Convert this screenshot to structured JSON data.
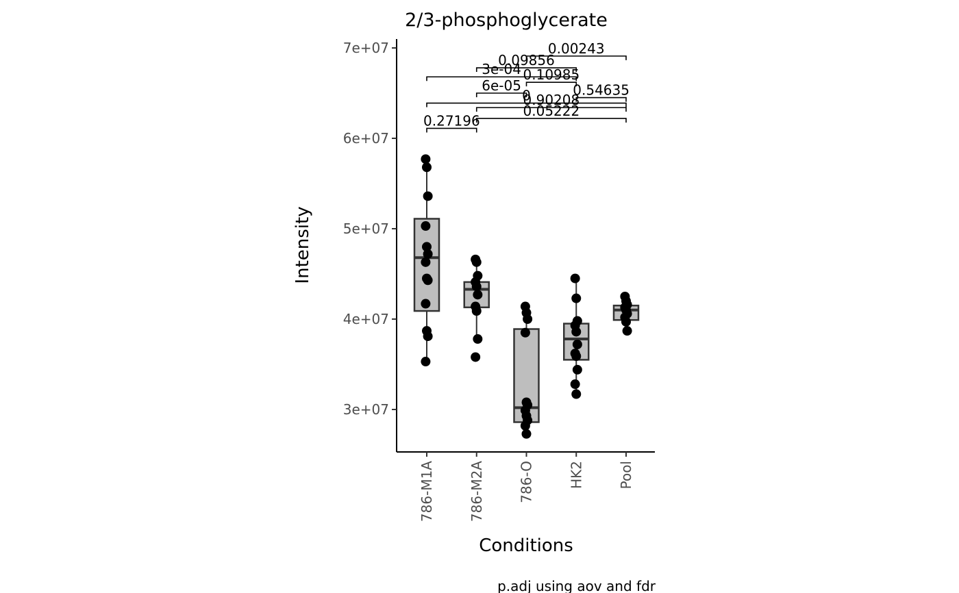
{
  "chart_data": {
    "type": "box",
    "title": "2/3-phosphoglycerate",
    "xlabel": "Conditions",
    "ylabel": "Intensity",
    "caption": "p.adj using  aov and fdr",
    "categories": [
      "786-M1A",
      "786-M2A",
      "786-O",
      "HK2",
      "Pool"
    ],
    "ylim": [
      25200000,
      71000000
    ],
    "yticks": [
      30000000,
      40000000,
      50000000,
      60000000,
      70000000
    ],
    "ytick_labels": [
      "3e+07",
      "4e+07",
      "5e+07",
      "6e+07",
      "7e+07"
    ],
    "boxes": [
      {
        "category": "786-M1A",
        "q1": 40900000,
        "median": 46800000,
        "q3": 51100000,
        "whisker_low": 35300000,
        "whisker_high": 57700000
      },
      {
        "category": "786-M2A",
        "q1": 41300000,
        "median": 43300000,
        "q3": 44100000,
        "whisker_low": 37800000,
        "whisker_high": 46600000
      },
      {
        "category": "786-O",
        "q1": 28600000,
        "median": 30200000,
        "q3": 38900000,
        "whisker_low": 27300000,
        "whisker_high": 41400000
      },
      {
        "category": "HK2",
        "q1": 35500000,
        "median": 37800000,
        "q3": 39500000,
        "whisker_low": 31700000,
        "whisker_high": 44500000
      },
      {
        "category": "Pool",
        "q1": 39900000,
        "median": 41000000,
        "q3": 41500000,
        "whisker_low": 38700000,
        "whisker_high": 42500000
      }
    ],
    "points": [
      {
        "category": "786-M1A",
        "values": [
          57700000,
          56800000,
          53600000,
          50300000,
          48000000,
          47200000,
          46300000,
          44500000,
          44300000,
          41700000,
          38700000,
          38100000,
          35300000
        ]
      },
      {
        "category": "786-M2A",
        "values": [
          46600000,
          46300000,
          44800000,
          44100000,
          43600000,
          42700000,
          41400000,
          40900000,
          37800000,
          35800000
        ]
      },
      {
        "category": "786-O",
        "values": [
          41400000,
          40700000,
          40000000,
          38500000,
          30800000,
          30500000,
          29900000,
          29300000,
          28800000,
          28200000,
          27300000
        ]
      },
      {
        "category": "HK2",
        "values": [
          44500000,
          42300000,
          39800000,
          39300000,
          38600000,
          37200000,
          36200000,
          35900000,
          34400000,
          32800000,
          31700000
        ]
      },
      {
        "category": "Pool",
        "values": [
          42500000,
          42000000,
          41600000,
          41300000,
          41000000,
          40600000,
          40200000,
          39700000,
          38700000
        ]
      }
    ],
    "comparisons": [
      {
        "from": "786-M1A",
        "to": "786-M2A",
        "label": "0.27196",
        "level": 61100000
      },
      {
        "from": "786-M2A",
        "to": "Pool",
        "label": "0.05222",
        "level": 62200000
      },
      {
        "from": "786-M2A",
        "to": "Pool",
        "label": "0.90208",
        "level": 63400000
      },
      {
        "from": "786-M1A",
        "to": "Pool",
        "label": "0",
        "level": 63900000
      },
      {
        "from": "HK2",
        "to": "Pool",
        "label": "0.54635",
        "level": 64500000
      },
      {
        "from": "786-M2A",
        "to": "786-O",
        "label": "6e-05",
        "level": 65000000
      },
      {
        "from": "786-O",
        "to": "HK2",
        "label": "0.10985",
        "level": 66200000
      },
      {
        "from": "786-M1A",
        "to": "HK2",
        "label": "3e-04",
        "level": 66800000
      },
      {
        "from": "786-M2A",
        "to": "HK2",
        "label": "0.09856",
        "level": 67800000
      },
      {
        "from": "786-O",
        "to": "Pool",
        "label": "0.00243",
        "level": 69100000
      }
    ],
    "colors": {
      "box_fill": "#bebebe",
      "box_stroke": "#333333",
      "point": "#000000",
      "axis": "#000000",
      "tick_text": "#4d4d4d"
    }
  }
}
